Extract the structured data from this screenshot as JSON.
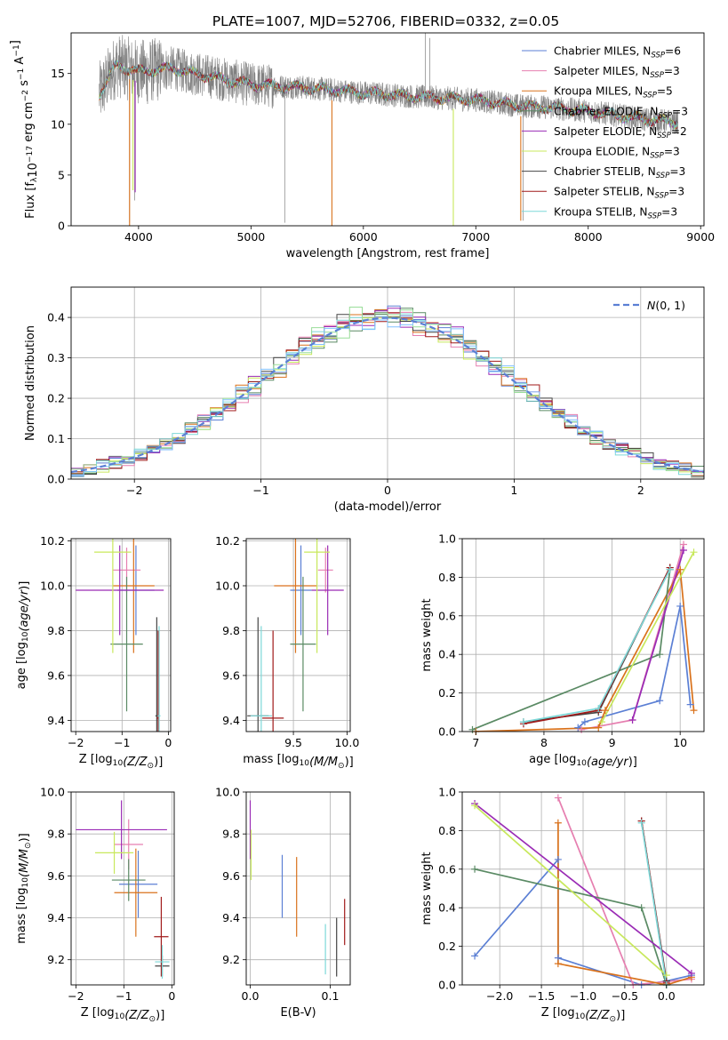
{
  "figure": {
    "title": "PLATE=1007, MJD=52706, FIBERID=0332, z=0.05"
  },
  "colors": {
    "Chabrier MILES": "#5b7fd4",
    "Salpeter MILES": "#e67fb0",
    "Kroupa MILES": "#d9721c",
    "Chabrier ELODIE": "#5a8a64",
    "Salpeter ELODIE": "#9a2bb5",
    "Kroupa ELODIE": "#c8e85c",
    "Chabrier STELIB": "#444444",
    "Salpeter STELIB": "#a01a1a",
    "Kroupa STELIB": "#7dd8d8",
    "data": "#808080"
  },
  "chart_data": [
    {
      "id": "spectrum",
      "type": "line",
      "title": "PLATE=1007, MJD=52706, FIBERID=0332, z=0.05",
      "xlabel": "wavelength [Angstrom, rest frame]",
      "ylabel": "Flux [f_λ10^-17 erg cm^-2 s^-1 A^-1]",
      "xlim": [
        3400,
        9030
      ],
      "ylim": [
        0,
        19
      ],
      "xticks": [
        4000,
        5000,
        6000,
        7000,
        8000,
        9000
      ],
      "yticks": [
        0,
        5,
        10,
        15
      ],
      "grid": false,
      "legend_position": "top-right",
      "legend": [
        {
          "label": "Chabrier MILES",
          "nssp": "6"
        },
        {
          "label": "Salpeter MILES",
          "nssp": "3"
        },
        {
          "label": "Kroupa MILES",
          "nssp": "5"
        },
        {
          "label": "Chabrier ELODIE",
          "nssp": "3"
        },
        {
          "label": "Salpeter ELODIE",
          "nssp": "2"
        },
        {
          "label": "Kroupa ELODIE",
          "nssp": "3"
        },
        {
          "label": "Chabrier STELIB",
          "nssp": "3"
        },
        {
          "label": "Salpeter STELIB",
          "nssp": "3"
        },
        {
          "label": "Kroupa STELIB",
          "nssp": "3"
        }
      ],
      "continuum": [
        [
          3650,
          13.0
        ],
        [
          3800,
          15.8
        ],
        [
          4000,
          15.2
        ],
        [
          4300,
          15.5
        ],
        [
          4500,
          15.0
        ],
        [
          5000,
          13.9
        ],
        [
          5500,
          13.6
        ],
        [
          6000,
          13.1
        ],
        [
          6500,
          12.7
        ],
        [
          7000,
          12.4
        ],
        [
          7400,
          11.8
        ],
        [
          7600,
          11.7
        ],
        [
          8000,
          11.3
        ],
        [
          8500,
          10.5
        ],
        [
          8800,
          10.2
        ]
      ],
      "data_range": [
        3650,
        8800
      ],
      "spikes": [
        [
          3920,
          0.3
        ],
        [
          3965,
          2.5
        ],
        [
          4080,
          12.0
        ],
        [
          5300,
          0.3
        ],
        [
          6550,
          19.0
        ],
        [
          6590,
          18.5
        ],
        [
          7420,
          0.5
        ]
      ],
      "model_dips": [
        {
          "x": 3920,
          "y": 0.0,
          "series": "Kroupa MILES"
        },
        {
          "x": 3950,
          "y": 3.5,
          "series": "Kroupa ELODIE"
        },
        {
          "x": 3970,
          "y": 3.3,
          "series": "Salpeter ELODIE"
        },
        {
          "x": 5720,
          "y": 0.0,
          "series": "Kroupa MILES"
        },
        {
          "x": 6800,
          "y": 0.0,
          "series": "Kroupa ELODIE"
        },
        {
          "x": 7400,
          "y": 0.5,
          "series": "Kroupa MILES"
        }
      ]
    },
    {
      "id": "residuals",
      "type": "histogram",
      "xlabel": "(data-model)/error",
      "ylabel": "Normed distribution",
      "xlim": [
        -2.5,
        2.5
      ],
      "ylim": [
        0,
        0.475
      ],
      "xticks": [
        -2,
        -1,
        0,
        1,
        2
      ],
      "yticks": [
        0.0,
        0.1,
        0.2,
        0.3,
        0.4
      ],
      "grid": true,
      "bin_width": 0.1,
      "gaussian": {
        "label": "N(0,1)",
        "mean": 0,
        "sigma": 1
      },
      "series_histograms": [
        "Chabrier MILES",
        "Salpeter MILES",
        "Kroupa MILES",
        "Chabrier ELODIE",
        "Salpeter ELODIE",
        "Kroupa ELODIE",
        "Chabrier STELIB",
        "Salpeter STELIB",
        "Kroupa STELIB"
      ],
      "extra_histogram_colors": [
        "#99dd99",
        "#80c0ff"
      ]
    },
    {
      "id": "age_vs_Z",
      "type": "errorbar",
      "xlabel": "Z [log10(Z/Z⊙)]",
      "ylabel": "age [log10(age/yr)]",
      "xlim": [
        -2.1,
        0.05
      ],
      "ylim": [
        9.35,
        10.21
      ],
      "xticks": [
        -2,
        -1,
        0
      ],
      "yticks": [
        9.4,
        9.6,
        9.8,
        10.0,
        10.2
      ],
      "grid": true,
      "points": [
        {
          "series": "Chabrier MILES",
          "x": -0.7,
          "xerr": 0.4,
          "y": 9.98,
          "yerr": 0.2
        },
        {
          "series": "Salpeter MILES",
          "x": -0.9,
          "xerr": 0.3,
          "y": 10.07,
          "yerr": 0.1
        },
        {
          "series": "Kroupa MILES",
          "x": -0.75,
          "xerr": 0.45,
          "y": 10.0,
          "yerr": 0.3
        },
        {
          "series": "Chabrier ELODIE",
          "x": -0.9,
          "xerr": 0.35,
          "y": 9.74,
          "yerr": 0.3
        },
        {
          "series": "Salpeter ELODIE",
          "x": -1.05,
          "xerr": 0.95,
          "y": 9.98,
          "yerr": 0.2
        },
        {
          "series": "Kroupa ELODIE",
          "x": -1.2,
          "xerr": 0.4,
          "y": 10.15,
          "yerr": 0.45
        },
        {
          "series": "Chabrier STELIB",
          "x": -0.25,
          "xerr": 0.03,
          "y": 9.42,
          "yerr": 0.44
        },
        {
          "series": "Salpeter STELIB",
          "x": -0.22,
          "xerr": 0.03,
          "y": 9.41,
          "yerr": 0.39
        },
        {
          "series": "Kroupa STELIB",
          "x": -0.2,
          "xerr": 0.03,
          "y": 9.42,
          "yerr": 0.4
        }
      ]
    },
    {
      "id": "age_vs_mass",
      "type": "errorbar",
      "xlabel": "mass [log10(M/M⊙)]",
      "ylabel": "",
      "xlim": [
        9.06,
        10.03
      ],
      "ylim": [
        9.35,
        10.21
      ],
      "xticks": [
        9.5,
        10.0
      ],
      "yticks": [
        9.4,
        9.6,
        9.8,
        10.0,
        10.2
      ],
      "grid": true,
      "points": [
        {
          "series": "Chabrier MILES",
          "x": 9.57,
          "xerr": 0.1,
          "y": 9.98,
          "yerr": 0.2
        },
        {
          "series": "Salpeter MILES",
          "x": 9.8,
          "xerr": 0.07,
          "y": 10.07,
          "yerr": 0.1
        },
        {
          "series": "Kroupa MILES",
          "x": 9.52,
          "xerr": 0.2,
          "y": 10.0,
          "yerr": 0.3
        },
        {
          "series": "Chabrier ELODIE",
          "x": 9.59,
          "xerr": 0.12,
          "y": 9.74,
          "yerr": 0.3
        },
        {
          "series": "Salpeter ELODIE",
          "x": 9.82,
          "xerr": 0.15,
          "y": 9.98,
          "yerr": 0.2
        },
        {
          "series": "Kroupa ELODIE",
          "x": 9.72,
          "xerr": 0.12,
          "y": 10.15,
          "yerr": 0.45
        },
        {
          "series": "Chabrier STELIB",
          "x": 9.17,
          "xerr": 0.1,
          "y": 9.42,
          "yerr": 0.44
        },
        {
          "series": "Salpeter STELIB",
          "x": 9.31,
          "xerr": 0.1,
          "y": 9.41,
          "yerr": 0.39
        },
        {
          "series": "Kroupa STELIB",
          "x": 9.2,
          "xerr": 0.1,
          "y": 9.42,
          "yerr": 0.4
        }
      ]
    },
    {
      "id": "weight_vs_age",
      "type": "line",
      "xlabel": "age [log10(age/yr)]",
      "ylabel": "mass weight",
      "xlim": [
        6.8,
        10.35
      ],
      "ylim": [
        0.0,
        1.0
      ],
      "xticks": [
        7,
        8,
        9,
        10
      ],
      "yticks": [
        0.0,
        0.2,
        0.4,
        0.6,
        0.8,
        1.0
      ],
      "grid": true,
      "series": [
        {
          "series": "Chabrier MILES",
          "points": [
            [
              8.5,
              0.02
            ],
            [
              8.6,
              0.05
            ],
            [
              9.7,
              0.16
            ],
            [
              10.0,
              0.65
            ],
            [
              10.15,
              0.14
            ]
          ]
        },
        {
          "series": "Salpeter MILES",
          "points": [
            [
              8.55,
              0.01
            ],
            [
              9.3,
              0.06
            ],
            [
              10.05,
              0.97
            ]
          ]
        },
        {
          "series": "Kroupa MILES",
          "points": [
            [
              7.0,
              0.0
            ],
            [
              8.8,
              0.02
            ],
            [
              8.9,
              0.11
            ],
            [
              10.0,
              0.84
            ],
            [
              10.2,
              0.11
            ]
          ]
        },
        {
          "series": "Chabrier ELODIE",
          "points": [
            [
              6.95,
              0.01
            ],
            [
              9.7,
              0.4
            ],
            [
              9.85,
              0.84
            ]
          ]
        },
        {
          "series": "Salpeter ELODIE",
          "points": [
            [
              9.3,
              0.06
            ],
            [
              10.05,
              0.94
            ]
          ]
        },
        {
          "series": "Kroupa ELODIE",
          "points": [
            [
              8.85,
              0.05
            ],
            [
              10.2,
              0.93
            ]
          ]
        },
        {
          "series": "Chabrier STELIB",
          "points": [
            [
              7.7,
              0.05
            ],
            [
              8.8,
              0.1
            ],
            [
              9.85,
              0.85
            ]
          ]
        },
        {
          "series": "Salpeter STELIB",
          "points": [
            [
              7.7,
              0.04
            ],
            [
              8.8,
              0.11
            ],
            [
              9.85,
              0.85
            ]
          ]
        },
        {
          "series": "Kroupa STELIB",
          "points": [
            [
              7.7,
              0.05
            ],
            [
              8.8,
              0.12
            ],
            [
              9.85,
              0.84
            ]
          ]
        }
      ]
    },
    {
      "id": "mass_vs_Z",
      "type": "errorbar",
      "xlabel": "Z [log10(Z/Z⊙)]",
      "ylabel": "mass [log10(M/M⊙)]",
      "xlim": [
        -2.1,
        0.05
      ],
      "ylim": [
        9.08,
        10.0
      ],
      "xticks": [
        -2,
        -1,
        0
      ],
      "yticks": [
        9.2,
        9.4,
        9.6,
        9.8,
        10.0
      ],
      "grid": true,
      "points": [
        {
          "series": "Chabrier MILES",
          "x": -0.7,
          "xerr": 0.4,
          "y": 9.56,
          "yerr": 0.16
        },
        {
          "series": "Salpeter MILES",
          "x": -0.9,
          "xerr": 0.3,
          "y": 9.75,
          "yerr": 0.12
        },
        {
          "series": "Kroupa MILES",
          "x": -0.75,
          "xerr": 0.45,
          "y": 9.52,
          "yerr": 0.21
        },
        {
          "series": "Chabrier ELODIE",
          "x": -0.9,
          "xerr": 0.35,
          "y": 9.58,
          "yerr": 0.1
        },
        {
          "series": "Salpeter ELODIE",
          "x": -1.05,
          "xerr": 0.95,
          "y": 9.82,
          "yerr": 0.14
        },
        {
          "series": "Kroupa ELODIE",
          "x": -1.2,
          "xerr": 0.4,
          "y": 9.71,
          "yerr": 0.1
        },
        {
          "series": "Chabrier STELIB",
          "x": -0.2,
          "xerr": 0.15,
          "y": 9.17,
          "yerr": 0.05
        },
        {
          "series": "Salpeter STELIB",
          "x": -0.22,
          "xerr": 0.15,
          "y": 9.31,
          "yerr": 0.19
        },
        {
          "series": "Kroupa STELIB",
          "x": -0.2,
          "xerr": 0.15,
          "y": 9.19,
          "yerr": 0.08
        }
      ]
    },
    {
      "id": "mass_vs_EBV",
      "type": "errorbar",
      "xlabel": "E(B-V)",
      "ylabel": "",
      "xlim": [
        -0.005,
        0.125
      ],
      "ylim": [
        9.08,
        10.0
      ],
      "xticks": [
        0.0,
        0.1
      ],
      "yticks": [
        9.2,
        9.4,
        9.6,
        9.8,
        10.0
      ],
      "grid": true,
      "points": [
        {
          "series": "Chabrier MILES",
          "x": 0.04,
          "y": 9.55,
          "yerr": 0.15
        },
        {
          "series": "Kroupa MILES",
          "x": 0.058,
          "y": 9.5,
          "yerr": 0.19
        },
        {
          "series": "Salpeter ELODIE",
          "x": 0.0,
          "y": 9.82,
          "yerr": 0.14
        },
        {
          "series": "Kroupa ELODIE",
          "x": 0.001,
          "y": 9.7,
          "yerr": 0.12
        },
        {
          "series": "Chabrier STELIB",
          "x": 0.108,
          "y": 9.26,
          "yerr": 0.14
        },
        {
          "series": "Salpeter STELIB",
          "x": 0.118,
          "y": 9.38,
          "yerr": 0.11
        },
        {
          "series": "Kroupa STELIB",
          "x": 0.094,
          "y": 9.25,
          "yerr": 0.12
        }
      ]
    },
    {
      "id": "weight_vs_Z",
      "type": "line",
      "xlabel": "Z [log10(Z/Z⊙)]",
      "ylabel": "mass weight",
      "xlim": [
        -2.45,
        0.45
      ],
      "ylim": [
        0.0,
        1.0
      ],
      "xticks": [
        -2.0,
        -1.5,
        -1.0,
        -0.5,
        0.0
      ],
      "yticks": [
        0.0,
        0.2,
        0.4,
        0.6,
        0.8,
        1.0
      ],
      "grid": true,
      "series": [
        {
          "series": "Chabrier MILES",
          "points": [
            [
              -2.3,
              0.15
            ],
            [
              -1.3,
              0.65
            ],
            [
              -1.3,
              0.14
            ],
            [
              -0.3,
              0.0
            ],
            [
              0.0,
              0.02
            ],
            [
              0.3,
              0.05
            ]
          ]
        },
        {
          "series": "Salpeter MILES",
          "points": [
            [
              -1.3,
              0.97
            ],
            [
              -0.4,
              0.0
            ],
            [
              0.3,
              0.03
            ]
          ]
        },
        {
          "series": "Kroupa MILES",
          "points": [
            [
              -1.3,
              0.84
            ],
            [
              -1.3,
              0.11
            ],
            [
              0.0,
              0.0
            ],
            [
              0.3,
              0.04
            ]
          ]
        },
        {
          "series": "Chabrier ELODIE",
          "points": [
            [
              -2.3,
              0.6
            ],
            [
              -0.3,
              0.4
            ],
            [
              0.0,
              0.0
            ]
          ]
        },
        {
          "series": "Salpeter ELODIE",
          "points": [
            [
              -2.3,
              0.94
            ],
            [
              0.3,
              0.06
            ]
          ]
        },
        {
          "series": "Kroupa ELODIE",
          "points": [
            [
              -2.3,
              0.93
            ],
            [
              0.0,
              0.05
            ]
          ]
        },
        {
          "series": "Chabrier STELIB",
          "points": [
            [
              -0.3,
              0.85
            ],
            [
              0.0,
              0.02
            ]
          ]
        },
        {
          "series": "Salpeter STELIB",
          "points": [
            [
              -0.3,
              0.85
            ],
            [
              0.0,
              0.01
            ]
          ]
        },
        {
          "series": "Kroupa STELIB",
          "points": [
            [
              -0.3,
              0.84
            ],
            [
              0.0,
              0.0
            ]
          ]
        }
      ]
    }
  ]
}
